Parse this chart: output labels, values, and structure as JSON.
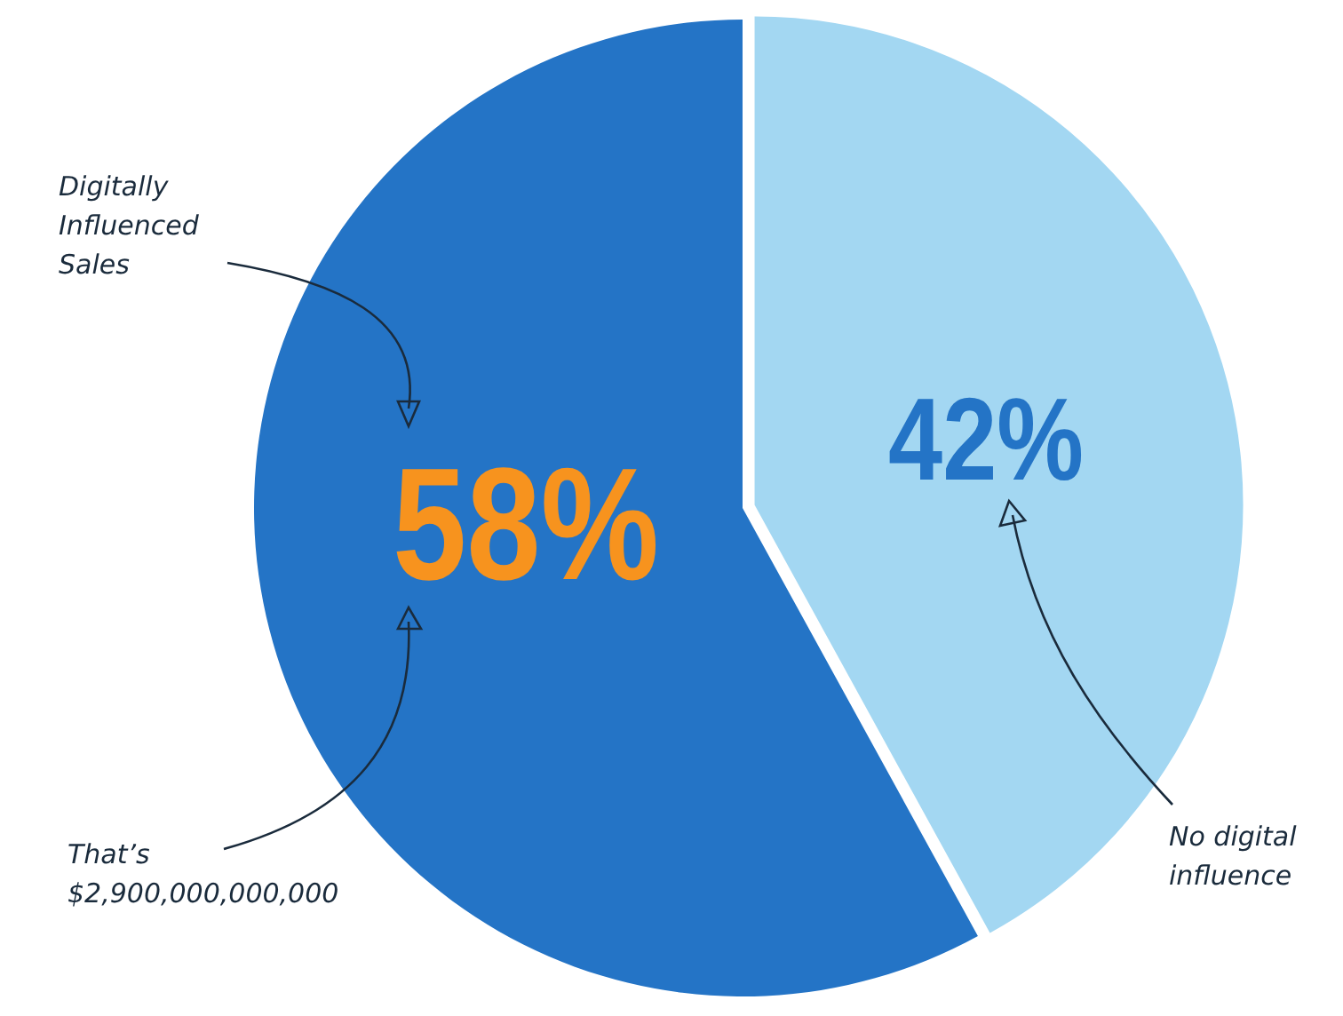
{
  "chart_data": {
    "type": "pie",
    "categories": [
      "Digitally Influenced Sales",
      "No digital influence"
    ],
    "values": [
      58,
      42
    ],
    "colors": [
      "#2474c6",
      "#a3d7f2"
    ],
    "value_labels": [
      "58%",
      "42%"
    ],
    "annotations": [
      "That’s $2,900,000,000,000"
    ]
  }
}
